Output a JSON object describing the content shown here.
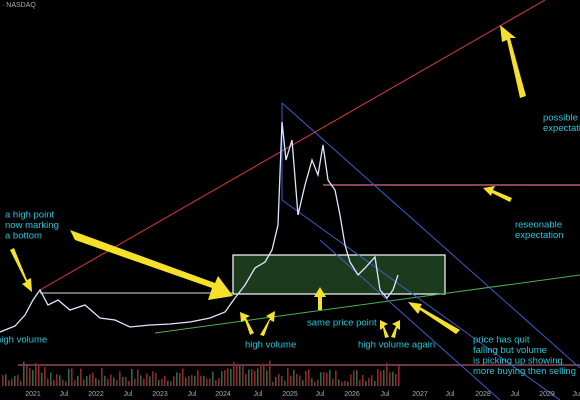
{
  "header": {
    "exchange": "· NASDAQ"
  },
  "x_axis": {
    "labels": [
      "2021",
      "Jul",
      "2022",
      "Jul",
      "2023",
      "Jul",
      "2024",
      "Jul",
      "2025",
      "Jul",
      "2026",
      "Jul",
      "2027",
      "Jul",
      "2028",
      "Jul",
      "2029",
      "Jul"
    ]
  },
  "annotations": [
    {
      "lines": [
        "a high point",
        "now marking",
        "a bottom"
      ]
    },
    {
      "lines": [
        "high volume"
      ]
    },
    {
      "lines": [
        "high volume"
      ]
    },
    {
      "lines": [
        "same price point"
      ]
    },
    {
      "lines": [
        "high volume again"
      ]
    },
    {
      "lines": [
        "reseonable",
        "expectation"
      ]
    },
    {
      "lines": [
        "possible",
        "expectation"
      ]
    },
    {
      "lines": [
        "price has quit",
        "falling but volume",
        "is picking up showing",
        "more buying then selling"
      ]
    }
  ]
}
